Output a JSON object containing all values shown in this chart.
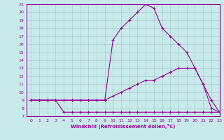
{
  "xlabel": "Windchill (Refroidissement éolien,°C)",
  "xlim": [
    -0.5,
    23
  ],
  "ylim": [
    7,
    21
  ],
  "yticks": [
    7,
    8,
    9,
    10,
    11,
    12,
    13,
    14,
    15,
    16,
    17,
    18,
    19,
    20,
    21
  ],
  "xticks": [
    0,
    1,
    2,
    3,
    4,
    5,
    6,
    7,
    8,
    9,
    10,
    11,
    12,
    13,
    14,
    15,
    16,
    17,
    18,
    19,
    20,
    21,
    22,
    23
  ],
  "bg_color": "#c8eaea",
  "line_color": "#990099",
  "grid_color": "#aacccc",
  "line_top_x": [
    0,
    1,
    2,
    3,
    4,
    5,
    6,
    7,
    8,
    9,
    10,
    11,
    12,
    13,
    14,
    15,
    16,
    17,
    18,
    19,
    20,
    21,
    22,
    23
  ],
  "line_top_y": [
    9,
    9,
    9,
    9,
    9,
    9,
    9,
    9,
    9,
    9,
    16.5,
    18,
    19,
    20,
    21,
    20.5,
    18,
    17,
    16,
    15,
    13,
    11,
    8,
    7.5
  ],
  "line_mid_x": [
    0,
    1,
    2,
    3,
    4,
    5,
    6,
    7,
    8,
    9,
    10,
    11,
    12,
    13,
    14,
    15,
    16,
    17,
    18,
    19,
    20,
    21,
    22,
    23
  ],
  "line_mid_y": [
    9,
    9,
    9,
    9,
    9,
    9,
    9,
    9,
    9,
    9,
    9.5,
    10,
    10.5,
    11,
    11.5,
    11.5,
    12,
    12.5,
    13,
    13,
    13,
    11,
    9,
    7.5
  ],
  "line_bot_x": [
    0,
    1,
    2,
    3,
    4,
    5,
    6,
    7,
    8,
    9,
    10,
    11,
    12,
    13,
    14,
    15,
    16,
    17,
    18,
    19,
    20,
    21,
    22,
    23
  ],
  "line_bot_y": [
    9,
    9,
    9,
    9,
    7.5,
    7.5,
    7.5,
    7.5,
    7.5,
    7.5,
    7.5,
    7.5,
    7.5,
    7.5,
    7.5,
    7.5,
    7.5,
    7.5,
    7.5,
    7.5,
    7.5,
    7.5,
    7.5,
    7.5
  ]
}
